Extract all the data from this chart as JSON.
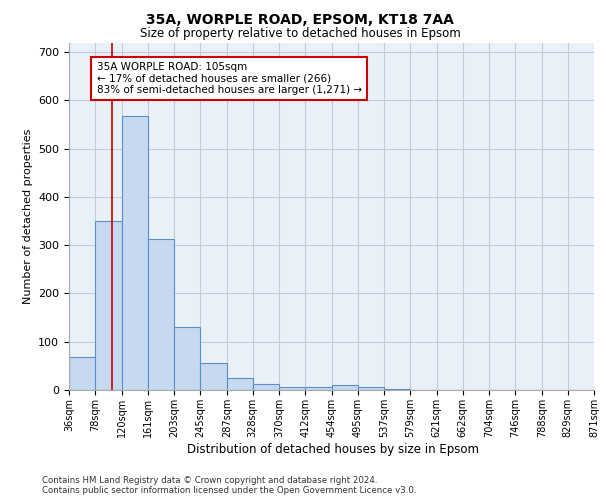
{
  "title1": "35A, WORPLE ROAD, EPSOM, KT18 7AA",
  "title2": "Size of property relative to detached houses in Epsom",
  "xlabel": "Distribution of detached houses by size in Epsom",
  "ylabel": "Number of detached properties",
  "bar_edges": [
    36,
    78,
    120,
    161,
    203,
    245,
    287,
    328,
    370,
    412,
    454,
    495,
    537,
    579,
    621,
    662,
    704,
    746,
    788,
    829,
    871
  ],
  "bar_heights": [
    68,
    350,
    567,
    313,
    130,
    55,
    24,
    12,
    7,
    6,
    10,
    7,
    3,
    0,
    0,
    0,
    0,
    0,
    0,
    0
  ],
  "bar_color": "#c7d9f0",
  "bar_edgecolor": "#5a8fc9",
  "bar_linewidth": 0.8,
  "property_line_x": 105,
  "property_line_color": "#cc0000",
  "annotation_text": "35A WORPLE ROAD: 105sqm\n← 17% of detached houses are smaller (266)\n83% of semi-detached houses are larger (1,271) →",
  "annotation_box_color": "white",
  "annotation_box_edgecolor": "#cc0000",
  "ylim": [
    0,
    720
  ],
  "yticks": [
    0,
    100,
    200,
    300,
    400,
    500,
    600,
    700
  ],
  "grid_color": "#c0ccdd",
  "bg_color": "#eaf0f8",
  "footer1": "Contains HM Land Registry data © Crown copyright and database right 2024.",
  "footer2": "Contains public sector information licensed under the Open Government Licence v3.0."
}
